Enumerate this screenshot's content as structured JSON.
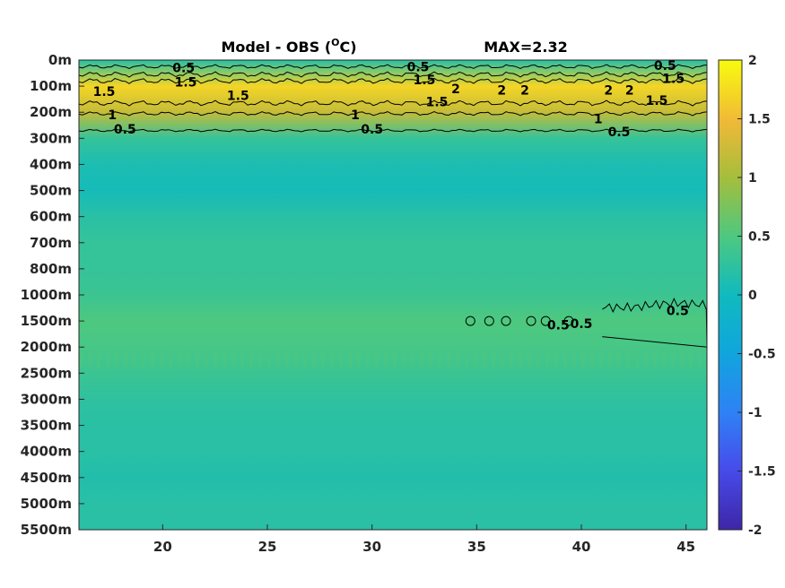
{
  "chart_data": {
    "type": "heatmap",
    "title": "Model - OBS (",
    "title_unit": "O",
    "title_tail": "C)",
    "max_label": "MAX=2.32",
    "x_ticks": [
      "20",
      "25",
      "30",
      "35",
      "40",
      "45"
    ],
    "x_tick_values": [
      20,
      25,
      30,
      35,
      40,
      45
    ],
    "xlim": [
      16,
      46
    ],
    "y_ticks": [
      "0m",
      "100m",
      "200m",
      "300m",
      "400m",
      "500m",
      "600m",
      "700m",
      "800m",
      "1000m",
      "1500m",
      "2000m",
      "2500m",
      "3000m",
      "3500m",
      "4000m",
      "4500m",
      "5000m",
      "5500m"
    ],
    "colorbar": {
      "ticks": [
        "2",
        "1.5",
        "1",
        "0.5",
        "0",
        "-0.5",
        "-1",
        "-1.5",
        "-2"
      ],
      "tick_values": [
        2,
        1.5,
        1,
        0.5,
        0,
        -0.5,
        -1,
        -1.5,
        -2
      ],
      "range": [
        -2,
        2
      ]
    },
    "depth_profile": [
      {
        "depth": "0m",
        "value": 0.2
      },
      {
        "depth": "100m",
        "value": 1.7
      },
      {
        "depth": "200m",
        "value": 1.2
      },
      {
        "depth": "300m",
        "value": 0.3
      },
      {
        "depth": "400m",
        "value": 0.1
      },
      {
        "depth": "500m",
        "value": 0.05
      },
      {
        "depth": "600m",
        "value": 0.2
      },
      {
        "depth": "700m",
        "value": 0.3
      },
      {
        "depth": "800m",
        "value": 0.3
      },
      {
        "depth": "1000m",
        "value": 0.35
      },
      {
        "depth": "1500m",
        "value": 0.5
      },
      {
        "depth": "2000m",
        "value": 0.45
      },
      {
        "depth": "2500m",
        "value": 0.35
      },
      {
        "depth": "3000m",
        "value": 0.25
      },
      {
        "depth": "3500m",
        "value": 0.2
      },
      {
        "depth": "4000m",
        "value": 0.2
      },
      {
        "depth": "4500m",
        "value": 0.15
      },
      {
        "depth": "5000m",
        "value": 0.2
      },
      {
        "depth": "5500m",
        "value": 0.2
      }
    ],
    "contour_labels": [
      {
        "text": "0.5",
        "x": 21.0,
        "depth_index": 0.3
      },
      {
        "text": "1.5",
        "x": 21.1,
        "depth_index": 0.85
      },
      {
        "text": "1.5",
        "x": 17.2,
        "depth_index": 1.2
      },
      {
        "text": "1.5",
        "x": 23.6,
        "depth_index": 1.35
      },
      {
        "text": "1",
        "x": 17.6,
        "depth_index": 2.1
      },
      {
        "text": "0.5",
        "x": 18.2,
        "depth_index": 2.65
      },
      {
        "text": "0.5",
        "x": 32.2,
        "depth_index": 0.25
      },
      {
        "text": "1.5",
        "x": 32.5,
        "depth_index": 0.75
      },
      {
        "text": "2",
        "x": 34.0,
        "depth_index": 1.1
      },
      {
        "text": "1.5",
        "x": 33.1,
        "depth_index": 1.6
      },
      {
        "text": "1",
        "x": 29.2,
        "depth_index": 2.1
      },
      {
        "text": "0.5",
        "x": 30.0,
        "depth_index": 2.65
      },
      {
        "text": "2",
        "x": 36.2,
        "depth_index": 1.15
      },
      {
        "text": "2",
        "x": 37.3,
        "depth_index": 1.15
      },
      {
        "text": "2",
        "x": 41.3,
        "depth_index": 1.15
      },
      {
        "text": "2",
        "x": 42.3,
        "depth_index": 1.15
      },
      {
        "text": "0.5",
        "x": 44.0,
        "depth_index": 0.2
      },
      {
        "text": "1.5",
        "x": 44.4,
        "depth_index": 0.7
      },
      {
        "text": "1.5",
        "x": 43.6,
        "depth_index": 1.55
      },
      {
        "text": "1",
        "x": 40.8,
        "depth_index": 2.25
      },
      {
        "text": "0.5",
        "x": 41.8,
        "depth_index": 2.75
      },
      {
        "text": "0.5",
        "x": 38.9,
        "depth_index": 10.15
      },
      {
        "text": "0.5",
        "x": 40.0,
        "depth_index": 10.1
      },
      {
        "text": "0.5",
        "x": 44.6,
        "depth_index": 9.6
      }
    ]
  }
}
